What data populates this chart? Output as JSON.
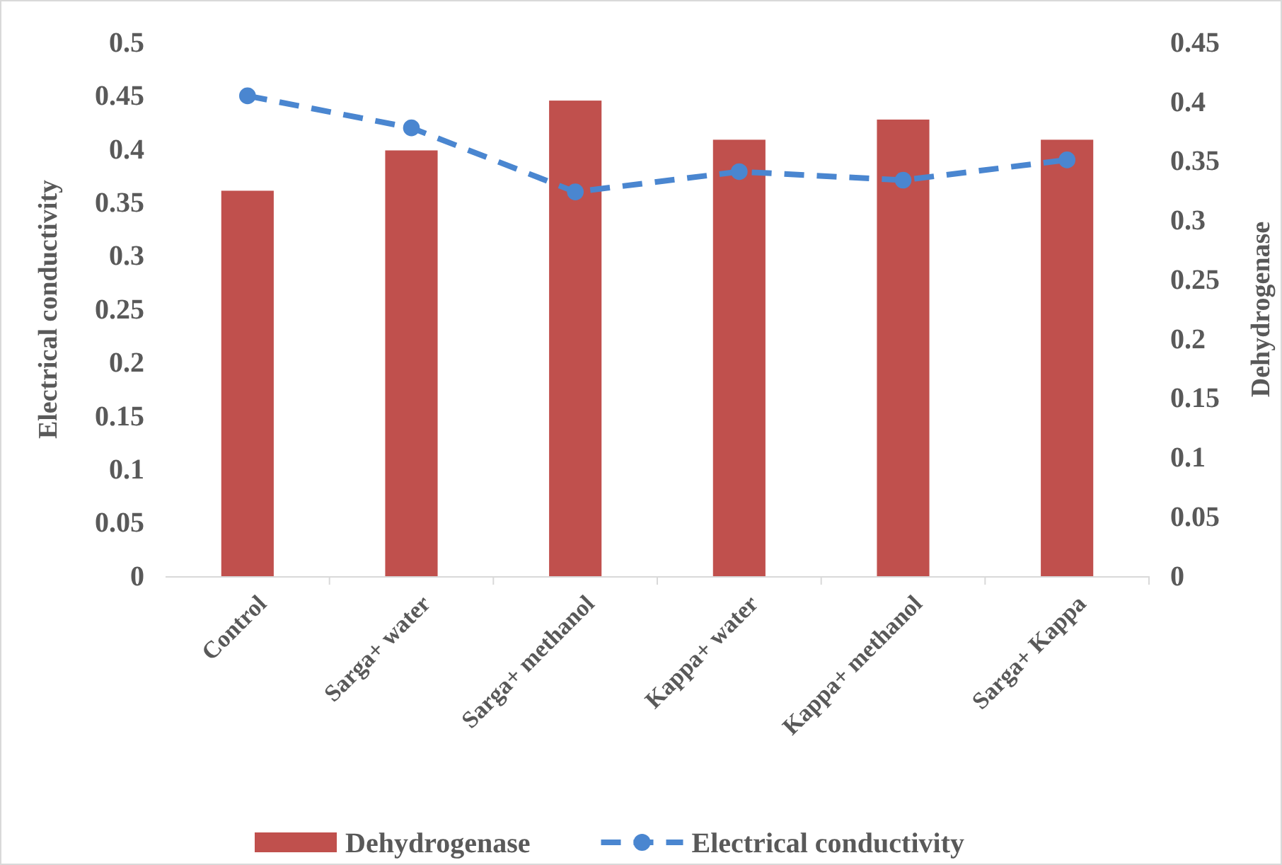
{
  "chart_data": {
    "type": "bar",
    "categories": [
      "Control",
      "Sarga+ water",
      "Sarga+ methanol",
      "Kappa+ water",
      "Kappa+ methanol",
      "Sarga+ Kappa"
    ],
    "series": [
      {
        "name": "Dehydrogenase",
        "axis": "y2",
        "color": "#c0504d",
        "values": [
          0.325,
          0.359,
          0.401,
          0.368,
          0.385,
          0.368
        ]
      },
      {
        "name": "Electrical conductivity",
        "type": "line",
        "color": "#4a86d0",
        "marker": "circle",
        "line_style": "dashed",
        "values": [
          0.45,
          0.42,
          0.36,
          0.379,
          0.371,
          0.39
        ]
      }
    ],
    "ylabel": "Electrical conductivity",
    "y2label": "Dehydrogenase",
    "ylim": [
      0,
      0.5
    ],
    "yticks": [
      0,
      0.05,
      0.1,
      0.15,
      0.2,
      0.25,
      0.3,
      0.35,
      0.4,
      0.45,
      0.5
    ],
    "y2lim": [
      0,
      0.45
    ],
    "y2ticks": [
      0,
      0.05,
      0.1,
      0.15,
      0.2,
      0.25,
      0.3,
      0.35,
      0.4,
      0.45
    ],
    "grid": false,
    "legend": "bottom"
  }
}
